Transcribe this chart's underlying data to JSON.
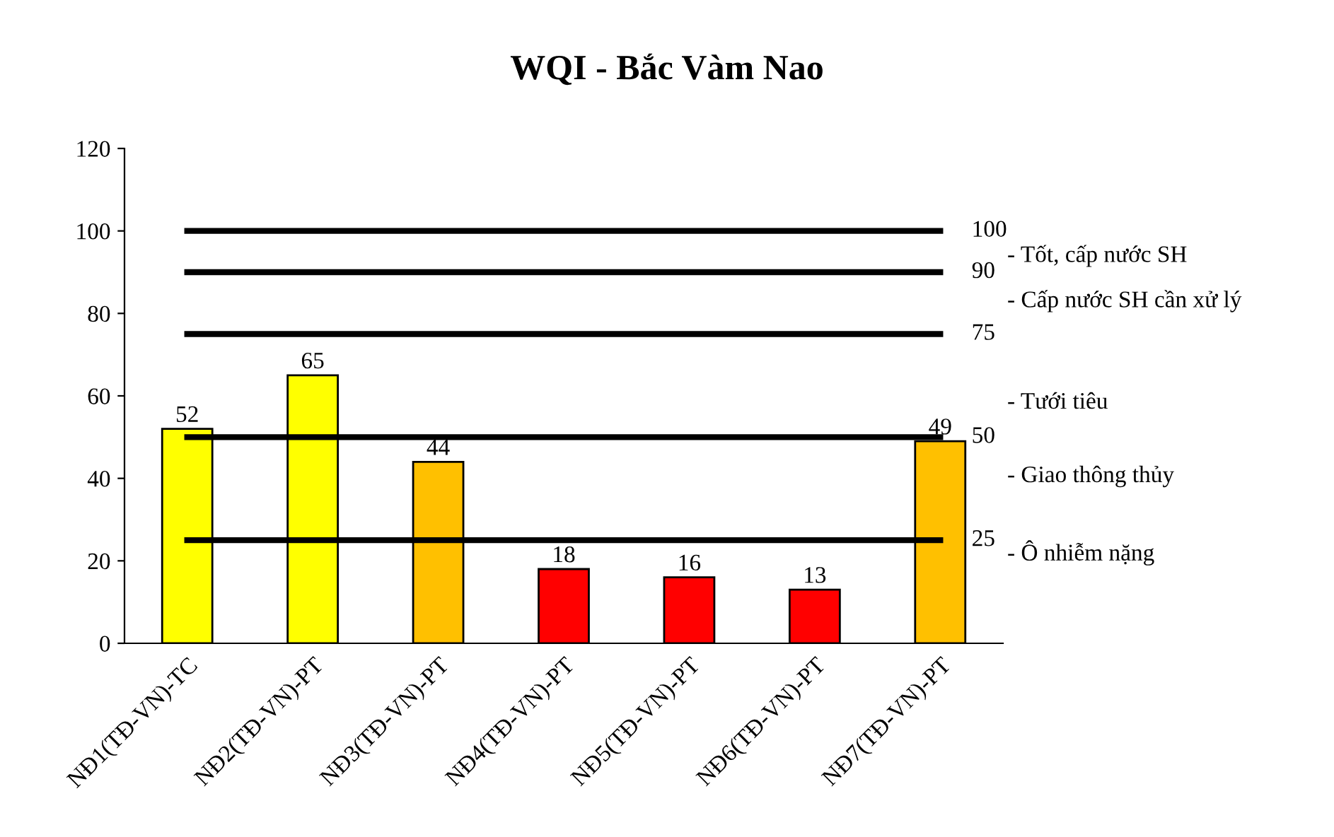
{
  "chart_data": {
    "type": "bar",
    "title": "WQI - Bắc Vàm Nao",
    "categories": [
      "NĐ1(TĐ-VN)-TC",
      "NĐ2(TĐ-VN)-PT",
      "NĐ3(TĐ-VN)-PT",
      "NĐ4(TĐ-VN)-PT",
      "NĐ5(TĐ-VN)-PT",
      "NĐ6(TĐ-VN)-PT",
      "NĐ7(TĐ-VN)-PT"
    ],
    "values": [
      52,
      65,
      44,
      18,
      16,
      13,
      49
    ],
    "colors": [
      "#ffff00",
      "#ffff00",
      "#ffc000",
      "#ff0000",
      "#ff0000",
      "#ff0000",
      "#ffc000"
    ],
    "data_labels": true,
    "ylim": [
      0,
      120
    ],
    "yticks": [
      0,
      20,
      40,
      60,
      80,
      100,
      120
    ],
    "grid": false,
    "ref_lines": [
      {
        "axis": "y",
        "value": 100,
        "label": "100",
        "color": "#000000"
      },
      {
        "axis": "y",
        "value": 90,
        "label": "90",
        "color": "#000000"
      },
      {
        "axis": "y",
        "value": 75,
        "label": "75",
        "color": "#000000"
      },
      {
        "axis": "y",
        "value": 50,
        "label": "50",
        "color": "#000000"
      },
      {
        "axis": "y",
        "value": 25,
        "label": "25",
        "color": "#000000"
      }
    ],
    "annotations": [
      "- Tốt, cấp nước SH",
      "- Cấp nước SH cần xử lý",
      "- Tưới tiêu",
      "- Giao thông thủy",
      "- Ô nhiễm nặng"
    ]
  }
}
